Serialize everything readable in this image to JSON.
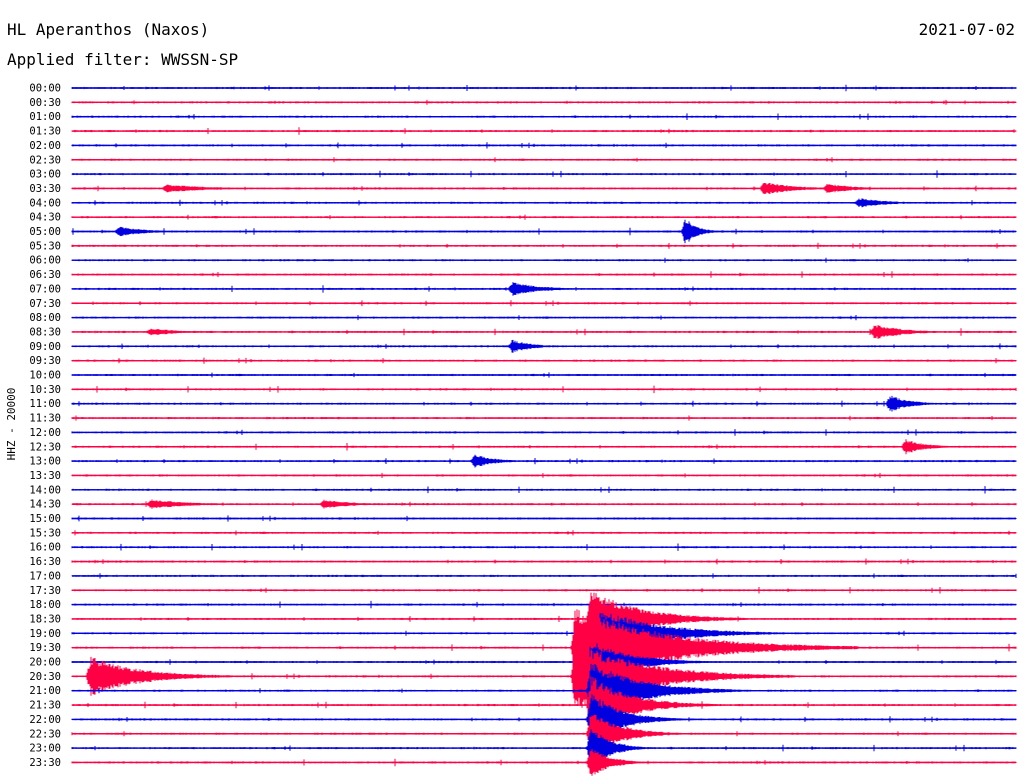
{
  "header": {
    "station": "HL Aperanthos (Naxos)",
    "date": "2021-07-02",
    "filter": "Applied filter: WWSSN-SP"
  },
  "chart_data": {
    "type": "line",
    "title": "HL Aperanthos (Naxos)",
    "ylabel": "HHZ - 20000",
    "colors": [
      "#0000e0",
      "#ff0044"
    ],
    "trace_labels": [
      "00:00",
      "00:30",
      "01:00",
      "01:30",
      "02:00",
      "02:30",
      "03:00",
      "03:30",
      "04:00",
      "04:30",
      "05:00",
      "05:30",
      "06:00",
      "06:30",
      "07:00",
      "07:30",
      "08:00",
      "08:30",
      "09:00",
      "09:30",
      "10:00",
      "10:30",
      "11:00",
      "11:30",
      "12:00",
      "12:30",
      "13:00",
      "13:30",
      "14:00",
      "14:30",
      "15:00",
      "15:30",
      "16:00",
      "16:30",
      "17:00",
      "17:30",
      "18:00",
      "18:30",
      "19:00",
      "19:30",
      "20:00",
      "20:30",
      "21:00",
      "21:30",
      "22:00",
      "22:30",
      "23:00",
      "23:30"
    ],
    "minutes_per_trace": 30,
    "events": [
      {
        "trace": 7,
        "minute": 3.0,
        "amplitude": 4,
        "duration": 2.5
      },
      {
        "trace": 7,
        "minute": 22.0,
        "amplitude": 7,
        "duration": 1.5
      },
      {
        "trace": 7,
        "minute": 24.0,
        "amplitude": 5,
        "duration": 1.5
      },
      {
        "trace": 8,
        "minute": 25.0,
        "amplitude": 5,
        "duration": 1.5
      },
      {
        "trace": 10,
        "minute": 1.5,
        "amplitude": 5,
        "duration": 1.5
      },
      {
        "trace": 10,
        "minute": 19.5,
        "amplitude": 14,
        "duration": 0.6
      },
      {
        "trace": 14,
        "minute": 14.0,
        "amplitude": 7,
        "duration": 1.5
      },
      {
        "trace": 17,
        "minute": 2.5,
        "amplitude": 4,
        "duration": 1.5
      },
      {
        "trace": 17,
        "minute": 25.5,
        "amplitude": 8,
        "duration": 1.5
      },
      {
        "trace": 18,
        "minute": 14.0,
        "amplitude": 7,
        "duration": 1.0
      },
      {
        "trace": 22,
        "minute": 26.0,
        "amplitude": 9,
        "duration": 1.0
      },
      {
        "trace": 25,
        "minute": 26.5,
        "amplitude": 8,
        "duration": 1.0
      },
      {
        "trace": 26,
        "minute": 12.8,
        "amplitude": 7,
        "duration": 1.0
      },
      {
        "trace": 29,
        "minute": 2.5,
        "amplitude": 5,
        "duration": 2.0
      },
      {
        "trace": 29,
        "minute": 8.0,
        "amplitude": 5,
        "duration": 1.5
      },
      {
        "trace": 37,
        "minute": 16.5,
        "amplitude": 30,
        "duration": 2.5
      },
      {
        "trace": 38,
        "minute": 16.8,
        "amplitude": 25,
        "duration": 3.0
      },
      {
        "trace": 39,
        "minute": 16.0,
        "amplitude": 42,
        "duration": 4.5
      },
      {
        "trace": 40,
        "minute": 16.5,
        "amplitude": 22,
        "duration": 2.0
      },
      {
        "trace": 41,
        "minute": 0.6,
        "amplitude": 20,
        "duration": 2.5
      },
      {
        "trace": 41,
        "minute": 16.0,
        "amplitude": 36,
        "duration": 3.5
      },
      {
        "trace": 42,
        "minute": 16.5,
        "amplitude": 30,
        "duration": 2.5
      },
      {
        "trace": 43,
        "minute": 16.5,
        "amplitude": 30,
        "duration": 2.0
      },
      {
        "trace": 44,
        "minute": 16.5,
        "amplitude": 28,
        "duration": 1.5
      },
      {
        "trace": 45,
        "minute": 16.5,
        "amplitude": 24,
        "duration": 1.5
      },
      {
        "trace": 46,
        "minute": 16.5,
        "amplitude": 22,
        "duration": 1.0
      },
      {
        "trace": 47,
        "minute": 16.5,
        "amplitude": 16,
        "duration": 1.0
      }
    ]
  }
}
